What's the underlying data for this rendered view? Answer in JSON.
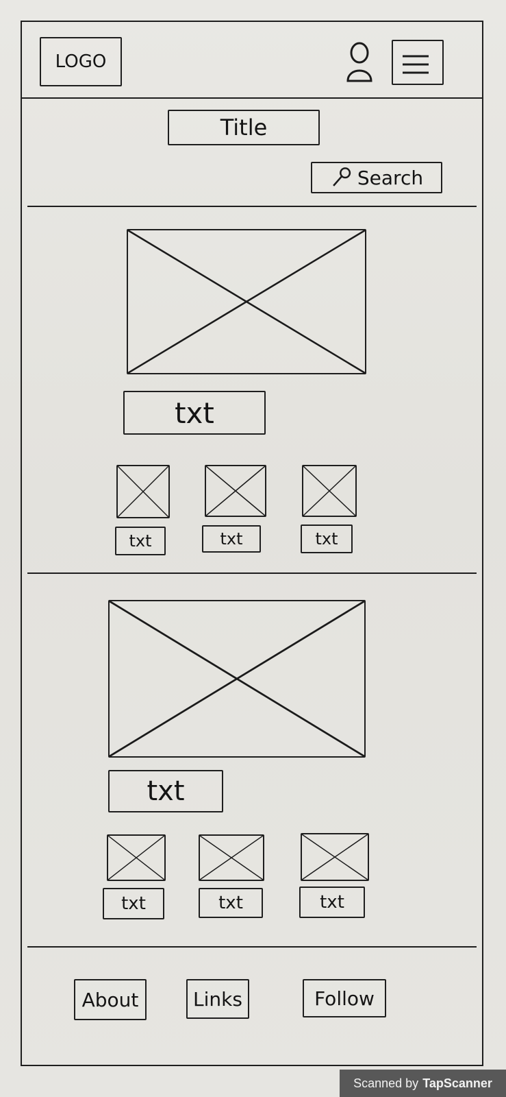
{
  "header": {
    "logo_label": "LOGO",
    "user_icon": "user-icon",
    "menu_icon": "hamburger-menu-icon"
  },
  "title_bar": {
    "title_label": "Title",
    "search_label": "Search",
    "search_icon": "search-icon"
  },
  "sections": [
    {
      "hero_caption": "txt",
      "items": [
        {
          "caption": "txt"
        },
        {
          "caption": "txt"
        },
        {
          "caption": "txt"
        }
      ]
    },
    {
      "hero_caption": "txt",
      "items": [
        {
          "caption": "txt"
        },
        {
          "caption": "txt"
        },
        {
          "caption": "txt"
        }
      ]
    }
  ],
  "footer": {
    "links": [
      "About",
      "Links",
      "Follow"
    ]
  },
  "watermark": {
    "prefix": "Scanned by",
    "brand": "TapScanner"
  }
}
